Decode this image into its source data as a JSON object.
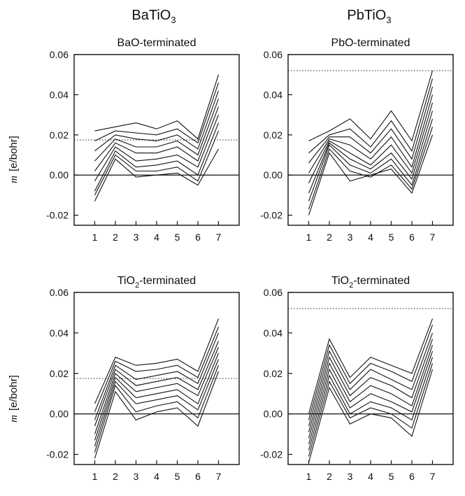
{
  "column_titles": {
    "left": {
      "main": "BaTiO",
      "sub": "3"
    },
    "right": {
      "main": "PbTiO",
      "sub": "3"
    }
  },
  "y_axis_label": {
    "symbol": "m",
    "unit": "[e/bohr]"
  },
  "chart_data": [
    {
      "type": "line",
      "title": {
        "pre": "BaO-terminated",
        "sub": "",
        "post": ""
      },
      "xlabel": "",
      "ylabel": "m [e/bohr]",
      "x": [
        1,
        2,
        3,
        4,
        5,
        6,
        7
      ],
      "xlim": [
        0,
        8
      ],
      "ylim": [
        -0.025,
        0.06
      ],
      "yticks": [
        -0.02,
        0.0,
        0.02,
        0.04,
        0.06
      ],
      "ytick_labels": [
        "-0.02",
        "0.00",
        "0.02",
        "0.04",
        "0.06"
      ],
      "hline_solid": 0.0,
      "hline_dotted": 0.0175,
      "series": [
        {
          "values": [
            0.022,
            0.024,
            0.026,
            0.023,
            0.027,
            0.018,
            0.05
          ]
        },
        {
          "values": [
            0.017,
            0.022,
            0.021,
            0.02,
            0.023,
            0.016,
            0.046
          ]
        },
        {
          "values": [
            0.012,
            0.02,
            0.018,
            0.017,
            0.02,
            0.013,
            0.042
          ]
        },
        {
          "values": [
            0.007,
            0.018,
            0.014,
            0.014,
            0.017,
            0.01,
            0.038
          ]
        },
        {
          "values": [
            0.002,
            0.016,
            0.011,
            0.011,
            0.014,
            0.007,
            0.034
          ]
        },
        {
          "values": [
            -0.003,
            0.014,
            0.007,
            0.008,
            0.01,
            0.004,
            0.03
          ]
        },
        {
          "values": [
            -0.008,
            0.012,
            0.004,
            0.005,
            0.007,
            0.0,
            0.026
          ]
        },
        {
          "values": [
            -0.01,
            0.01,
            0.002,
            0.002,
            0.004,
            -0.003,
            0.022
          ]
        },
        {
          "values": [
            -0.013,
            0.008,
            -0.001,
            0.0,
            0.001,
            -0.005,
            0.013
          ]
        }
      ]
    },
    {
      "type": "line",
      "title": {
        "pre": "PbO-terminated",
        "sub": "",
        "post": ""
      },
      "xlabel": "",
      "ylabel": "",
      "x": [
        1,
        2,
        3,
        4,
        5,
        6,
        7
      ],
      "xlim": [
        0,
        8
      ],
      "ylim": [
        -0.025,
        0.06
      ],
      "yticks": [
        -0.02,
        0.0,
        0.02,
        0.04,
        0.06
      ],
      "ytick_labels": [
        "-0.02",
        "0.00",
        "0.02",
        "0.04",
        "0.06"
      ],
      "hline_solid": 0.0,
      "hline_dotted": 0.052,
      "series": [
        {
          "values": [
            0.017,
            0.022,
            0.028,
            0.018,
            0.032,
            0.017,
            0.052
          ]
        },
        {
          "values": [
            0.011,
            0.02,
            0.023,
            0.014,
            0.027,
            0.012,
            0.048
          ]
        },
        {
          "values": [
            0.006,
            0.019,
            0.019,
            0.011,
            0.023,
            0.008,
            0.044
          ]
        },
        {
          "values": [
            0.001,
            0.018,
            0.015,
            0.008,
            0.019,
            0.004,
            0.04
          ]
        },
        {
          "values": [
            -0.004,
            0.017,
            0.011,
            0.005,
            0.015,
            0.001,
            0.036
          ]
        },
        {
          "values": [
            -0.009,
            0.016,
            0.008,
            0.003,
            0.011,
            -0.002,
            0.032
          ]
        },
        {
          "values": [
            -0.013,
            0.015,
            0.005,
            0.001,
            0.008,
            -0.005,
            0.028
          ]
        },
        {
          "values": [
            -0.017,
            0.013,
            0.002,
            -0.001,
            0.005,
            -0.007,
            0.024
          ]
        },
        {
          "values": [
            -0.02,
            0.011,
            -0.003,
            0.0,
            0.003,
            -0.009,
            0.02
          ]
        }
      ]
    },
    {
      "type": "line",
      "title": {
        "pre": "TiO",
        "sub": "2",
        "post": "-terminated"
      },
      "xlabel": "",
      "ylabel": "m [e/bohr]",
      "x": [
        1,
        2,
        3,
        4,
        5,
        6,
        7
      ],
      "xlim": [
        0,
        8
      ],
      "ylim": [
        -0.025,
        0.06
      ],
      "yticks": [
        -0.02,
        0.0,
        0.02,
        0.04,
        0.06
      ],
      "ytick_labels": [
        "-0.02",
        "0.00",
        "0.02",
        "0.04",
        "0.06"
      ],
      "hline_solid": 0.0,
      "hline_dotted": 0.0175,
      "series": [
        {
          "values": [
            0.005,
            0.028,
            0.024,
            0.025,
            0.027,
            0.021,
            0.047
          ]
        },
        {
          "values": [
            0.001,
            0.026,
            0.021,
            0.022,
            0.024,
            0.018,
            0.043
          ]
        },
        {
          "values": [
            -0.003,
            0.024,
            0.017,
            0.019,
            0.021,
            0.015,
            0.04
          ]
        },
        {
          "values": [
            -0.006,
            0.022,
            0.014,
            0.016,
            0.018,
            0.012,
            0.036
          ]
        },
        {
          "values": [
            -0.01,
            0.02,
            0.011,
            0.013,
            0.015,
            0.009,
            0.033
          ]
        },
        {
          "values": [
            -0.013,
            0.018,
            0.008,
            0.01,
            0.012,
            0.005,
            0.03
          ]
        },
        {
          "values": [
            -0.016,
            0.016,
            0.005,
            0.007,
            0.009,
            0.002,
            0.027
          ]
        },
        {
          "values": [
            -0.019,
            0.014,
            0.001,
            0.004,
            0.006,
            -0.002,
            0.024
          ]
        },
        {
          "values": [
            -0.022,
            0.011,
            -0.003,
            0.001,
            0.003,
            -0.006,
            0.021
          ]
        }
      ]
    },
    {
      "type": "line",
      "title": {
        "pre": "TiO",
        "sub": "2",
        "post": "-terminated"
      },
      "xlabel": "",
      "ylabel": "",
      "x": [
        1,
        2,
        3,
        4,
        5,
        6,
        7
      ],
      "xlim": [
        0,
        8
      ],
      "ylim": [
        -0.025,
        0.06
      ],
      "yticks": [
        -0.02,
        0.0,
        0.02,
        0.04,
        0.06
      ],
      "ytick_labels": [
        "-0.02",
        "0.00",
        "0.02",
        "0.04",
        "0.06"
      ],
      "hline_solid": 0.0,
      "hline_dotted": 0.052,
      "series": [
        {
          "values": [
            0.0,
            0.037,
            0.018,
            0.028,
            0.024,
            0.02,
            0.047
          ]
        },
        {
          "values": [
            -0.003,
            0.034,
            0.015,
            0.025,
            0.021,
            0.016,
            0.044
          ]
        },
        {
          "values": [
            -0.006,
            0.031,
            0.012,
            0.022,
            0.017,
            0.012,
            0.04
          ]
        },
        {
          "values": [
            -0.009,
            0.028,
            0.009,
            0.018,
            0.014,
            0.008,
            0.037
          ]
        },
        {
          "values": [
            -0.012,
            0.025,
            0.006,
            0.014,
            0.01,
            0.004,
            0.034
          ]
        },
        {
          "values": [
            -0.015,
            0.022,
            0.003,
            0.01,
            0.006,
            0.001,
            0.031
          ]
        },
        {
          "values": [
            -0.018,
            0.019,
            0.0,
            0.006,
            0.003,
            -0.003,
            0.028
          ]
        },
        {
          "values": [
            -0.021,
            0.016,
            -0.002,
            0.003,
            0.0,
            -0.007,
            0.025
          ]
        },
        {
          "values": [
            -0.024,
            0.013,
            -0.005,
            0.0,
            -0.002,
            -0.011,
            0.022
          ]
        }
      ]
    }
  ]
}
